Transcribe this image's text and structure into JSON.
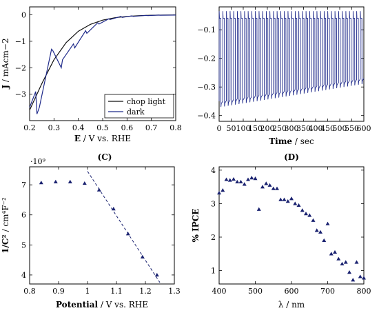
{
  "panels": {
    "A": {
      "xlabel_bold": "E",
      "xlabel_rest": " / V vs. RHE",
      "ylabel_bold": "J",
      "ylabel_rest": " / mAcm−2",
      "xticks": [
        "0.2",
        "0.3",
        "0.4",
        "0.5",
        "0.6",
        "0.7",
        "0.8"
      ],
      "yticks": [
        "0",
        "−1",
        "−2",
        "−3"
      ],
      "legend": [
        "chop light",
        "dark"
      ]
    },
    "B": {
      "xlabel_bold": "Time",
      "xlabel_rest": " / sec",
      "xticks": [
        "0",
        "50",
        "100",
        "150",
        "200",
        "250",
        "300",
        "350",
        "400",
        "450",
        "500",
        "550",
        "600"
      ],
      "yticks": [
        "−0.1",
        "−0.2",
        "−0.3",
        "−0.4"
      ]
    },
    "C": {
      "label": "(C)",
      "xlabel_bold": "Potential",
      "xlabel_rest": " / V vs. RHE",
      "ylabel_bold": "1/C²",
      "ylabel_rest": " / cm⁴F⁻²",
      "multiplier": "·10⁹",
      "xticks": [
        "0.8",
        "0.9",
        "1",
        "1.1",
        "1.2",
        "1.3"
      ],
      "yticks": [
        "4",
        "5",
        "6",
        "7"
      ]
    },
    "D": {
      "label": "(D)",
      "xlabel": "λ / nm",
      "ylabel": "% IPCE",
      "xticks": [
        "400",
        "500",
        "600",
        "700",
        "800"
      ],
      "yticks": [
        "1",
        "2",
        "3",
        "4"
      ]
    }
  },
  "colors": {
    "dark": "#1f2a8a",
    "light": "#111111",
    "marker": "#1a2270"
  },
  "chart_data": [
    {
      "type": "line",
      "xlabel": "E / V vs. RHE",
      "ylabel": "J / mAcm−2",
      "xlim": [
        0.2,
        0.8
      ],
      "ylim": [
        -4,
        0.3
      ],
      "series": [
        {
          "name": "chop light",
          "x": [
            0.2,
            0.25,
            0.3,
            0.35,
            0.4,
            0.45,
            0.5,
            0.55,
            0.6,
            0.65,
            0.7,
            0.75,
            0.8
          ],
          "y": [
            -3.6,
            -2.6,
            -1.7,
            -1.05,
            -0.62,
            -0.36,
            -0.2,
            -0.11,
            -0.06,
            -0.03,
            -0.015,
            -0.008,
            -0.005
          ]
        },
        {
          "name": "dark",
          "x": [
            0.2,
            0.225,
            0.23,
            0.24,
            0.29,
            0.295,
            0.33,
            0.335,
            0.38,
            0.385,
            0.43,
            0.435,
            0.48,
            0.485,
            0.525,
            0.53,
            0.575,
            0.58,
            0.62,
            0.625,
            0.68,
            0.685,
            0.73,
            0.735,
            0.8
          ],
          "y": [
            -3.5,
            -2.9,
            -3.75,
            -3.5,
            -1.3,
            -1.35,
            -2.0,
            -1.7,
            -1.1,
            -1.25,
            -0.6,
            -0.7,
            -0.3,
            -0.35,
            -0.15,
            -0.18,
            -0.06,
            -0.1,
            -0.04,
            -0.06,
            -0.02,
            -0.03,
            -0.01,
            -0.015,
            -0.01
          ]
        }
      ]
    },
    {
      "type": "line",
      "xlabel": "Time / sec",
      "xlim": [
        0,
        600
      ],
      "ylim": [
        -0.42,
        -0.02
      ],
      "cycles": 40,
      "period_s": 15,
      "light_current": [
        -0.06,
        -0.06
      ],
      "dark_current": [
        -0.37,
        -0.29
      ]
    },
    {
      "type": "scatter",
      "xlabel": "Potential / V vs. RHE",
      "ylabel": "1/C² / cm⁴F⁻²",
      "y_multiplier": "·10⁹",
      "xlim": [
        0.8,
        1.3
      ],
      "ylim": [
        3.7,
        7.6
      ],
      "points": [
        [
          0.84,
          7.07
        ],
        [
          0.89,
          7.1
        ],
        [
          0.94,
          7.1
        ],
        [
          0.99,
          7.05
        ],
        [
          1.04,
          6.83
        ],
        [
          1.09,
          6.2
        ],
        [
          1.14,
          5.37
        ],
        [
          1.19,
          4.6
        ],
        [
          1.24,
          4.0
        ]
      ],
      "fit_line": [
        [
          1.0,
          7.45
        ],
        [
          1.25,
          3.75
        ]
      ]
    },
    {
      "type": "scatter",
      "xlabel": "λ / nm",
      "ylabel": "% IPCE",
      "xlim": [
        400,
        800
      ],
      "ylim": [
        0.6,
        4.1
      ],
      "points": [
        [
          400,
          3.32
        ],
        [
          410,
          3.4
        ],
        [
          420,
          3.72
        ],
        [
          430,
          3.7
        ],
        [
          440,
          3.73
        ],
        [
          450,
          3.65
        ],
        [
          460,
          3.65
        ],
        [
          470,
          3.58
        ],
        [
          480,
          3.72
        ],
        [
          490,
          3.77
        ],
        [
          500,
          3.75
        ],
        [
          510,
          2.83
        ],
        [
          520,
          3.5
        ],
        [
          530,
          3.6
        ],
        [
          540,
          3.55
        ],
        [
          550,
          3.45
        ],
        [
          560,
          3.45
        ],
        [
          570,
          3.12
        ],
        [
          580,
          3.12
        ],
        [
          590,
          3.07
        ],
        [
          600,
          3.15
        ],
        [
          610,
          3.0
        ],
        [
          620,
          2.95
        ],
        [
          630,
          2.8
        ],
        [
          640,
          2.7
        ],
        [
          650,
          2.65
        ],
        [
          660,
          2.5
        ],
        [
          670,
          2.2
        ],
        [
          680,
          2.15
        ],
        [
          690,
          1.9
        ],
        [
          700,
          2.4
        ],
        [
          710,
          1.5
        ],
        [
          720,
          1.55
        ],
        [
          730,
          1.35
        ],
        [
          740,
          1.2
        ],
        [
          750,
          1.25
        ],
        [
          760,
          0.95
        ],
        [
          770,
          0.72
        ],
        [
          780,
          1.25
        ],
        [
          790,
          0.82
        ],
        [
          800,
          0.78
        ]
      ]
    }
  ]
}
